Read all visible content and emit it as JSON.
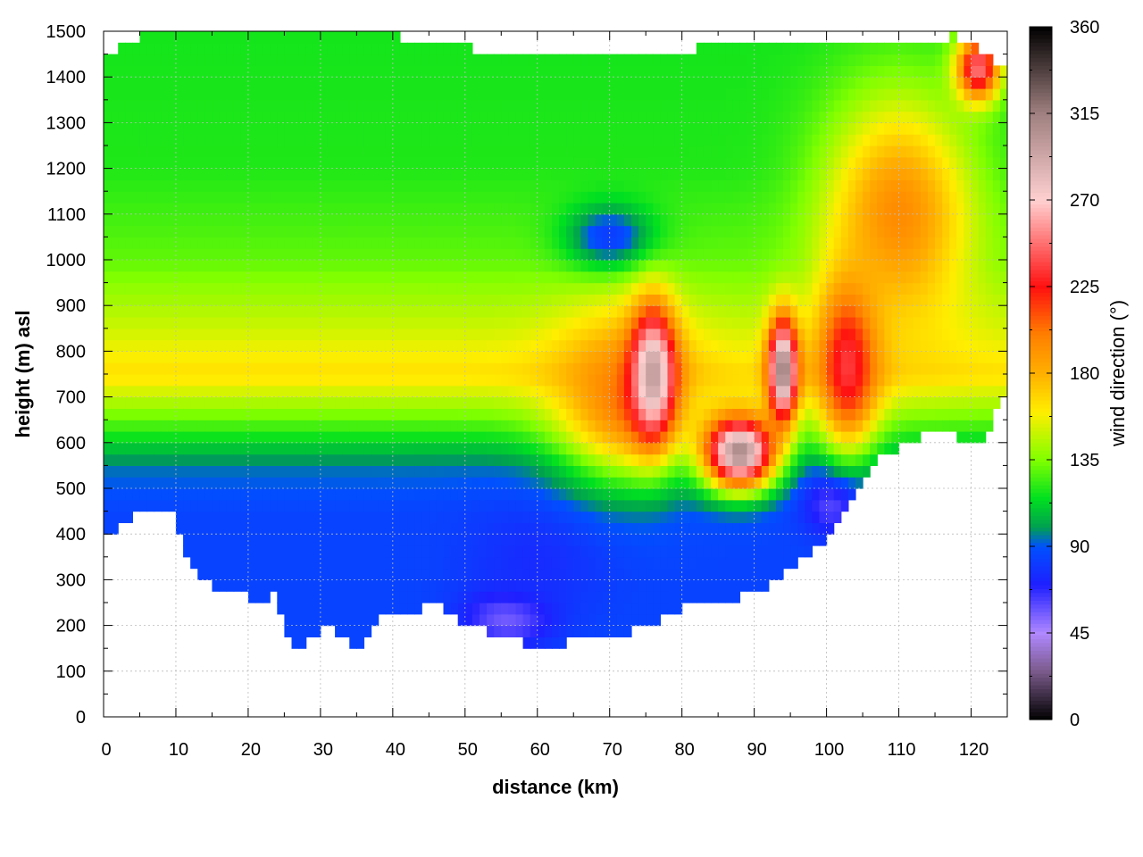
{
  "chart_data": {
    "type": "heatmap",
    "title": "",
    "xlabel": "distance (km)",
    "ylabel": "height (m) asl",
    "colorbar_label": "wind direction (°)",
    "xlim": [
      0,
      125
    ],
    "ylim": [
      0,
      1500
    ],
    "clim": [
      0,
      360
    ],
    "x_ticks": [
      0,
      10,
      20,
      30,
      40,
      50,
      60,
      70,
      80,
      90,
      100,
      110,
      120
    ],
    "y_ticks": [
      0,
      100,
      200,
      300,
      400,
      500,
      600,
      700,
      800,
      900,
      1000,
      1100,
      1200,
      1300,
      1400,
      1500
    ],
    "colorbar_ticks": [
      0,
      45,
      90,
      135,
      180,
      225,
      270,
      315,
      360
    ],
    "grid": true,
    "colormap": [
      {
        "v": 0,
        "color": "#000000"
      },
      {
        "v": 25,
        "color": "#7a5a8a"
      },
      {
        "v": 45,
        "color": "#b088ff"
      },
      {
        "v": 70,
        "color": "#1f1fff"
      },
      {
        "v": 90,
        "color": "#0050ff"
      },
      {
        "v": 100,
        "color": "#00a050"
      },
      {
        "v": 115,
        "color": "#00e020"
      },
      {
        "v": 135,
        "color": "#80ff00"
      },
      {
        "v": 160,
        "color": "#ffee00"
      },
      {
        "v": 180,
        "color": "#ffb000"
      },
      {
        "v": 200,
        "color": "#ff8000"
      },
      {
        "v": 225,
        "color": "#ff1010"
      },
      {
        "v": 270,
        "color": "#ffd0d0"
      },
      {
        "v": 315,
        "color": "#a08080"
      },
      {
        "v": 360,
        "color": "#000000"
      }
    ],
    "terrain": [
      [
        0,
        400
      ],
      [
        3,
        425
      ],
      [
        7,
        460
      ],
      [
        10,
        440
      ],
      [
        12,
        330
      ],
      [
        15,
        285
      ],
      [
        18,
        280
      ],
      [
        21,
        255
      ],
      [
        24,
        265
      ],
      [
        26,
        145
      ],
      [
        28,
        165
      ],
      [
        31,
        195
      ],
      [
        33,
        185
      ],
      [
        35,
        145
      ],
      [
        38,
        220
      ],
      [
        41,
        225
      ],
      [
        44,
        240
      ],
      [
        46,
        260
      ],
      [
        48,
        225
      ],
      [
        50,
        195
      ],
      [
        54,
        185
      ],
      [
        58,
        165
      ],
      [
        62,
        145
      ],
      [
        65,
        175
      ],
      [
        68,
        185
      ],
      [
        72,
        185
      ],
      [
        76,
        200
      ],
      [
        80,
        240
      ],
      [
        84,
        245
      ],
      [
        88,
        265
      ],
      [
        92,
        290
      ],
      [
        96,
        330
      ],
      [
        100,
        395
      ],
      [
        104,
        480
      ],
      [
        107,
        560
      ],
      [
        110,
        585
      ],
      [
        113,
        610
      ],
      [
        116,
        635
      ],
      [
        119,
        605
      ],
      [
        122,
        610
      ],
      [
        124,
        690
      ],
      [
        125,
        700
      ]
    ],
    "top_edge": [
      [
        0,
        1450
      ],
      [
        5,
        1490
      ],
      [
        20,
        1490
      ],
      [
        40,
        1490
      ],
      [
        60,
        1440
      ],
      [
        80,
        1460
      ],
      [
        95,
        1480
      ],
      [
        110,
        1470
      ],
      [
        118,
        1490
      ],
      [
        125,
        1420
      ]
    ],
    "field_layers": [
      {
        "h": 450,
        "v": 85
      },
      {
        "h": 550,
        "v": 95
      },
      {
        "h": 650,
        "v": 130
      },
      {
        "h": 750,
        "v": 165
      },
      {
        "h": 850,
        "v": 150
      },
      {
        "h": 1000,
        "v": 130
      },
      {
        "h": 1200,
        "v": 120
      },
      {
        "h": 1500,
        "v": 118
      }
    ],
    "features": [
      {
        "x": 56,
        "h": 220,
        "v": 50,
        "rx": 6,
        "ry": 60
      },
      {
        "x": 60,
        "h": 350,
        "v": 75,
        "rx": 10,
        "ry": 120
      },
      {
        "x": 70,
        "h": 1050,
        "v": 80,
        "rx": 6,
        "ry": 70
      },
      {
        "x": 72,
        "h": 700,
        "v": 200,
        "rx": 9,
        "ry": 170
      },
      {
        "x": 76,
        "h": 750,
        "v": 300,
        "rx": 3,
        "ry": 140
      },
      {
        "x": 88,
        "h": 580,
        "v": 310,
        "rx": 5,
        "ry": 80
      },
      {
        "x": 94,
        "h": 760,
        "v": 320,
        "rx": 2,
        "ry": 110
      },
      {
        "x": 101,
        "h": 470,
        "v": 55,
        "rx": 4,
        "ry": 70
      },
      {
        "x": 103,
        "h": 780,
        "v": 240,
        "rx": 4,
        "ry": 180
      },
      {
        "x": 110,
        "h": 1100,
        "v": 195,
        "rx": 10,
        "ry": 250
      },
      {
        "x": 121,
        "h": 1420,
        "v": 250,
        "rx": 3,
        "ry": 70
      }
    ]
  }
}
